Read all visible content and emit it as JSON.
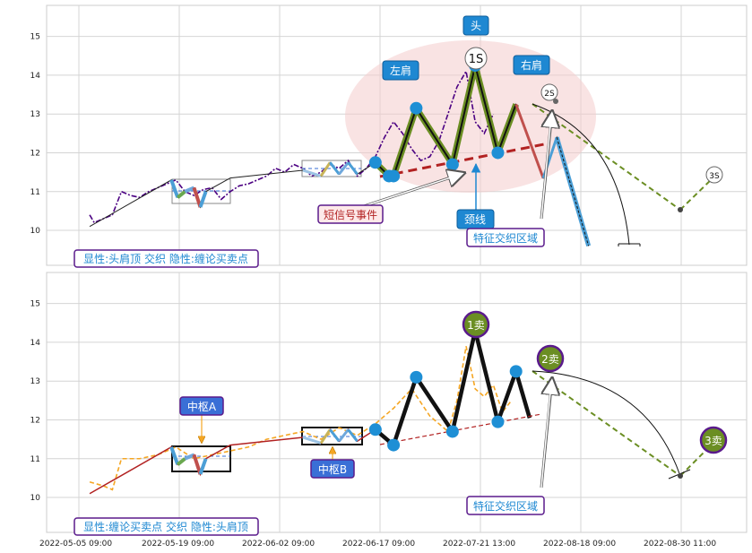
{
  "chart_data": [
    {
      "type": "line",
      "panel": "top",
      "ylim": [
        9.1,
        15.8
      ],
      "yticks": [
        10,
        11,
        12,
        13,
        14,
        15
      ],
      "grid": true,
      "series": [
        {
          "values": [
            [
              0.5,
              10.4
            ],
            [
              1,
              10.2
            ],
            [
              2,
              10.3
            ],
            [
              3,
              10.4
            ],
            [
              4,
              11.0
            ],
            [
              5,
              10.9
            ],
            [
              6,
              10.85
            ],
            [
              7,
              11.0
            ],
            [
              8,
              11.1
            ],
            [
              9,
              11.2
            ],
            [
              10,
              11.3
            ],
            [
              11,
              11.0
            ],
            [
              12,
              10.9
            ],
            [
              13,
              11.05
            ],
            [
              14,
              11.1
            ],
            [
              15,
              10.8
            ],
            [
              16,
              11.0
            ],
            [
              17,
              11.15
            ],
            [
              18,
              11.2
            ],
            [
              19,
              11.3
            ],
            [
              20,
              11.4
            ],
            [
              21,
              11.6
            ],
            [
              22,
              11.5
            ],
            [
              23,
              11.7
            ],
            [
              24,
              11.6
            ],
            [
              25,
              11.4
            ],
            [
              26,
              11.5
            ],
            [
              27,
              11.7
            ],
            [
              28,
              11.6
            ],
            [
              29,
              11.8
            ],
            [
              30,
              11.4
            ],
            [
              31,
              11.6
            ],
            [
              32,
              11.9
            ],
            [
              33,
              12.4
            ],
            [
              34,
              12.8
            ],
            [
              35,
              12.5
            ],
            [
              36,
              12.1
            ],
            [
              37,
              11.8
            ],
            [
              38,
              11.9
            ],
            [
              39,
              12.3
            ],
            [
              40,
              13.0
            ],
            [
              41,
              13.7
            ],
            [
              42,
              14.1
            ],
            [
              43,
              12.8
            ],
            [
              44,
              12.5
            ],
            [
              45,
              13.0
            ]
          ]
        },
        {
          "values": [
            [
              0.5,
              10.1
            ],
            [
              9.5,
              11.3
            ],
            [
              10.2,
              10.85
            ],
            [
              11,
              11.0
            ],
            [
              12,
              11.1
            ],
            [
              12.7,
              10.6
            ],
            [
              13.3,
              11.0
            ],
            [
              16,
              11.35
            ],
            [
              24,
              11.55
            ],
            [
              26,
              11.4
            ],
            [
              27,
              11.75
            ],
            [
              28,
              11.45
            ],
            [
              29,
              11.75
            ],
            [
              30,
              11.45
            ],
            [
              32,
              11.75
            ],
            [
              33.5,
              11.4
            ],
            [
              34,
              11.4
            ],
            [
              36.5,
              13.15
            ],
            [
              40.5,
              11.7
            ],
            [
              43,
              14.25
            ],
            [
              45.5,
              12.0
            ],
            [
              47.5,
              13.25
            ],
            [
              49,
              12.3
            ],
            [
              50.5,
              11.35
            ],
            [
              52,
              12.4
            ],
            [
              55.5,
              9.6
            ]
          ]
        }
      ]
    },
    {
      "type": "line",
      "panel": "bottom",
      "ylim": [
        9.1,
        15.8
      ],
      "yticks": [
        10,
        11,
        12,
        13,
        14,
        15
      ],
      "xticks": [
        "2022-05-05 09:00",
        "2022-05-19 09:00",
        "2022-06-02 09:00",
        "2022-06-17 09:00",
        "2022-07-21 13:00",
        "2022-08-18 09:00",
        "2022-08-30 11:00"
      ],
      "grid": true,
      "series": [
        {
          "values": [
            [
              0.5,
              10.4
            ],
            [
              2,
              10.3
            ],
            [
              3,
              10.2
            ],
            [
              4,
              11.0
            ],
            [
              6,
              11.0
            ],
            [
              8,
              11.1
            ],
            [
              10,
              11.3
            ],
            [
              12,
              11.0
            ],
            [
              14,
              11.1
            ],
            [
              16,
              11.2
            ],
            [
              18,
              11.3
            ],
            [
              20,
              11.5
            ],
            [
              22,
              11.6
            ],
            [
              24,
              11.7
            ],
            [
              26,
              11.5
            ],
            [
              28,
              11.8
            ],
            [
              30,
              11.6
            ],
            [
              32,
              11.9
            ],
            [
              34,
              12.3
            ],
            [
              36,
              12.8
            ],
            [
              38,
              12.1
            ],
            [
              40,
              11.7
            ],
            [
              41,
              12.5
            ],
            [
              42,
              13.9
            ],
            [
              43,
              12.8
            ],
            [
              44,
              12.6
            ],
            [
              45,
              12.9
            ],
            [
              46,
              12.2
            ],
            [
              47,
              12.5
            ]
          ]
        },
        {
          "values": [
            [
              0.5,
              10.1
            ],
            [
              9.5,
              11.3
            ],
            [
              10.2,
              10.85
            ],
            [
              11,
              11.0
            ],
            [
              12,
              11.1
            ],
            [
              12.7,
              10.6
            ],
            [
              13.3,
              11.0
            ],
            [
              16,
              11.35
            ],
            [
              24,
              11.55
            ],
            [
              26,
              11.4
            ],
            [
              27,
              11.75
            ],
            [
              28,
              11.45
            ],
            [
              29,
              11.75
            ],
            [
              30,
              11.45
            ],
            [
              32,
              11.75
            ],
            [
              34,
              11.35
            ],
            [
              36.5,
              13.1
            ],
            [
              40.5,
              11.7
            ],
            [
              43,
              14.3
            ],
            [
              45.5,
              11.95
            ],
            [
              47.5,
              13.25
            ],
            [
              49,
              12.05
            ]
          ]
        }
      ]
    }
  ],
  "annotations": {
    "top": {
      "head": "头",
      "left_shoulder": "左肩",
      "right_shoulder": "右肩",
      "short_signal": "短信号事件",
      "neckline": "颈线",
      "feature_zone": "特征交织区域",
      "s1": "1S",
      "s2": "2S",
      "s3": "3S",
      "bottom_label": "显性:头肩顶 交织 隐性:缠论买卖点"
    },
    "bottom": {
      "pivot_a": "中枢A",
      "pivot_b": "中枢B",
      "sell1": "1卖",
      "sell2": "2卖",
      "sell3": "3卖",
      "feature_zone": "特征交织区域",
      "bottom_label": "显性:缠论买卖点 交织 隐性:头肩顶"
    }
  },
  "colors": {
    "price_top": "#4b0082",
    "price_bottom": "#f5a623",
    "badge_blue": "#1e88d2",
    "badge_purple_border": "#5a1a8c",
    "olive": "#6b8e23",
    "neckline": "#b22222",
    "ellipse": "#f4cccc",
    "node_blue": "#1e8fd5",
    "sell_circle": "#6b8e23"
  }
}
